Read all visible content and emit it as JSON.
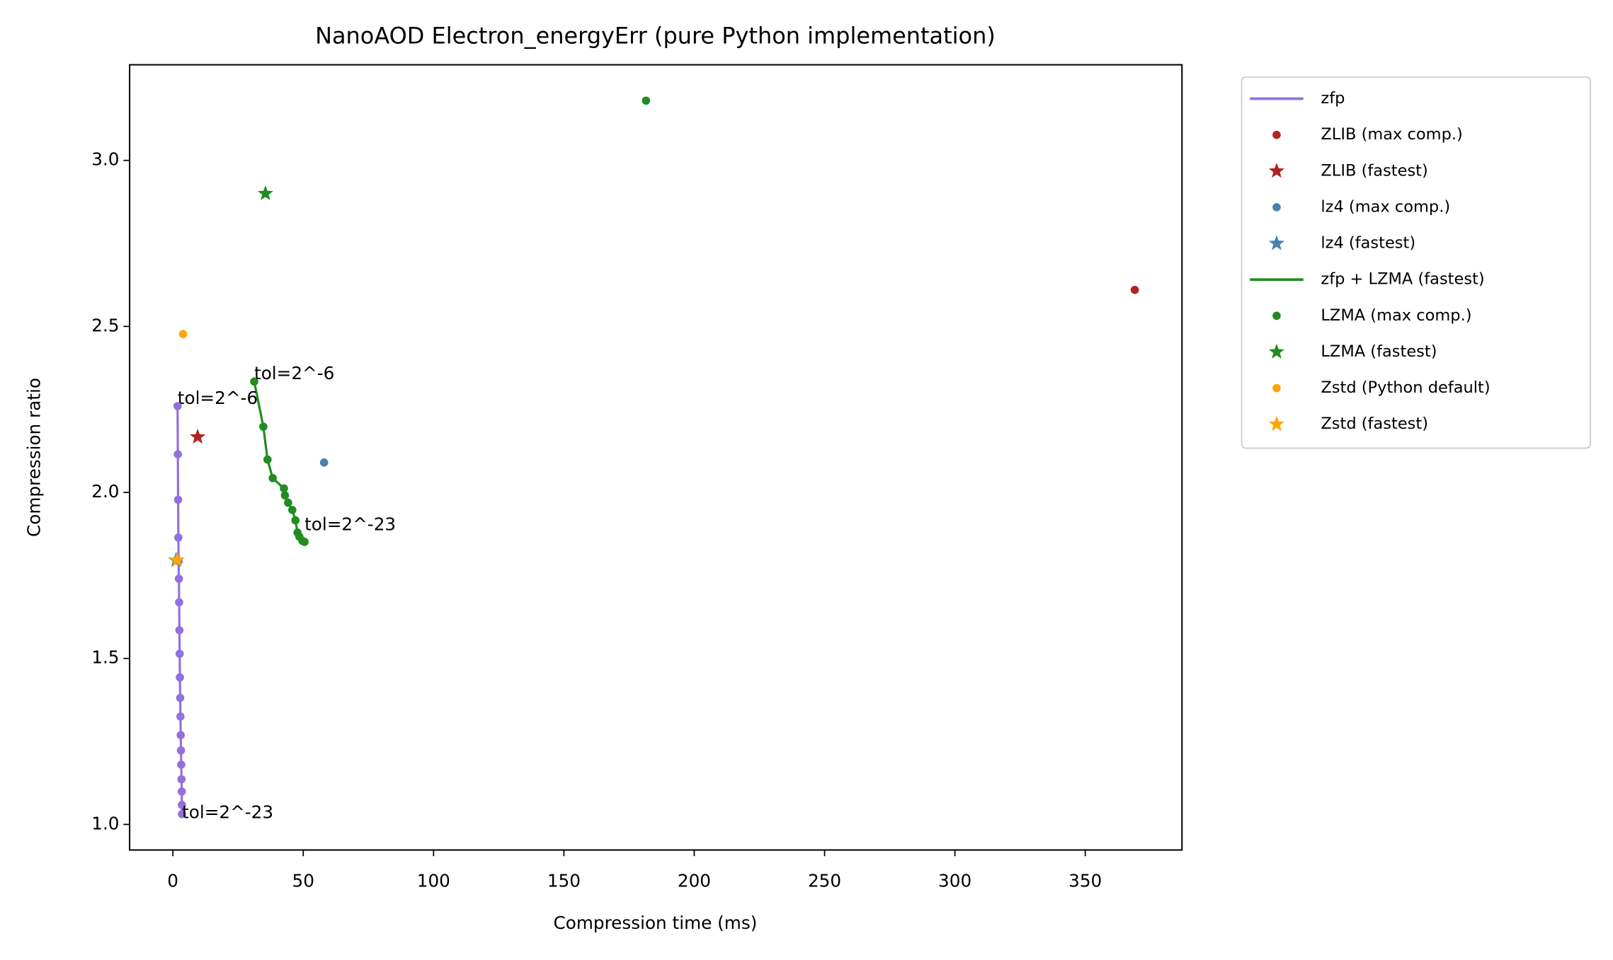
{
  "chart_data": {
    "type": "scatter",
    "title": "NanoAOD Electron_energyErr (pure Python implementation)",
    "x_label": "Compression time (ms)",
    "y_label": "Compression ratio",
    "xlim": [
      -16.6,
      387.1
    ],
    "ylim": [
      0.923,
      3.288
    ],
    "xticks": [
      0,
      50,
      100,
      150,
      200,
      250,
      300,
      350
    ],
    "yticks": [
      {
        "value": 1,
        "label": "1.0"
      },
      1.5,
      {
        "value": 2,
        "label": "2.0"
      },
      2.5,
      {
        "value": 3,
        "label": "3.0"
      }
    ],
    "grid": false,
    "legend": "outside-upper-right",
    "series": [
      {
        "name": "zfp",
        "color": "#9370db",
        "style": "line",
        "x": [
          1.8,
          1.9,
          2.0,
          2.1,
          2.2,
          2.3,
          2.4,
          2.5,
          2.6,
          2.7,
          2.8,
          2.9,
          3.0,
          3.1,
          3.2,
          3.3,
          3.4,
          3.45,
          3.5
        ],
        "values": [
          2.26,
          2.115,
          1.978,
          1.864,
          1.793,
          1.74,
          1.669,
          1.585,
          1.514,
          1.443,
          1.381,
          1.325,
          1.269,
          1.223,
          1.18,
          1.136,
          1.099,
          1.059,
          1.031
        ]
      },
      {
        "name": "ZLIB (max comp.)",
        "color": "#b22222",
        "style": "dot",
        "x": [
          369
        ],
        "values": [
          2.61
        ]
      },
      {
        "name": "ZLIB (fastest)",
        "color": "#b22222",
        "style": "star",
        "x": [
          9.5
        ],
        "values": [
          2.167
        ]
      },
      {
        "name": "lz4 (max comp.)",
        "color": "#4682b4",
        "style": "dot",
        "x": [
          58
        ],
        "values": [
          2.09
        ]
      },
      {
        "name": "lz4 (fastest)",
        "color": "#4682b4",
        "style": "star",
        "x": [
          1.2
        ],
        "values": [
          1.796
        ]
      },
      {
        "name": "zfp + LZMA (fastest)",
        "color": "#228b22",
        "style": "line",
        "x": [
          31.2,
          34.7,
          36.3,
          38.3,
          42.6,
          43.0,
          44.2,
          45.8,
          47.0,
          47.8,
          48.5,
          49.7,
          50.5
        ],
        "values": [
          2.334,
          2.198,
          2.099,
          2.043,
          2.012,
          1.991,
          1.969,
          1.947,
          1.916,
          1.879,
          1.867,
          1.854,
          1.851
        ]
      },
      {
        "name": "LZMA (max comp.)",
        "color": "#228b22",
        "style": "dot",
        "x": [
          181.5
        ],
        "values": [
          3.18
        ]
      },
      {
        "name": "LZMA (fastest)",
        "color": "#228b22",
        "style": "star",
        "x": [
          35.5
        ],
        "values": [
          2.9
        ]
      },
      {
        "name": "Zstd (Python default)",
        "color": "#ffa500",
        "style": "dot",
        "x": [
          3.9
        ],
        "values": [
          2.477
        ]
      },
      {
        "name": "Zstd (fastest)",
        "color": "#ffa500",
        "style": "star",
        "x": [
          1.6
        ],
        "values": [
          1.796
        ]
      }
    ],
    "annotations": [
      {
        "text": "tol=2^-6",
        "x": 1.8,
        "y": 2.26
      },
      {
        "text": "tol=2^-23",
        "x": 3.5,
        "y": 1.031
      },
      {
        "text": "tol=2^-6",
        "x": 31.2,
        "y": 2.334
      },
      {
        "text": "tol=2^-23",
        "x": 50.5,
        "y": 1.851
      }
    ]
  }
}
